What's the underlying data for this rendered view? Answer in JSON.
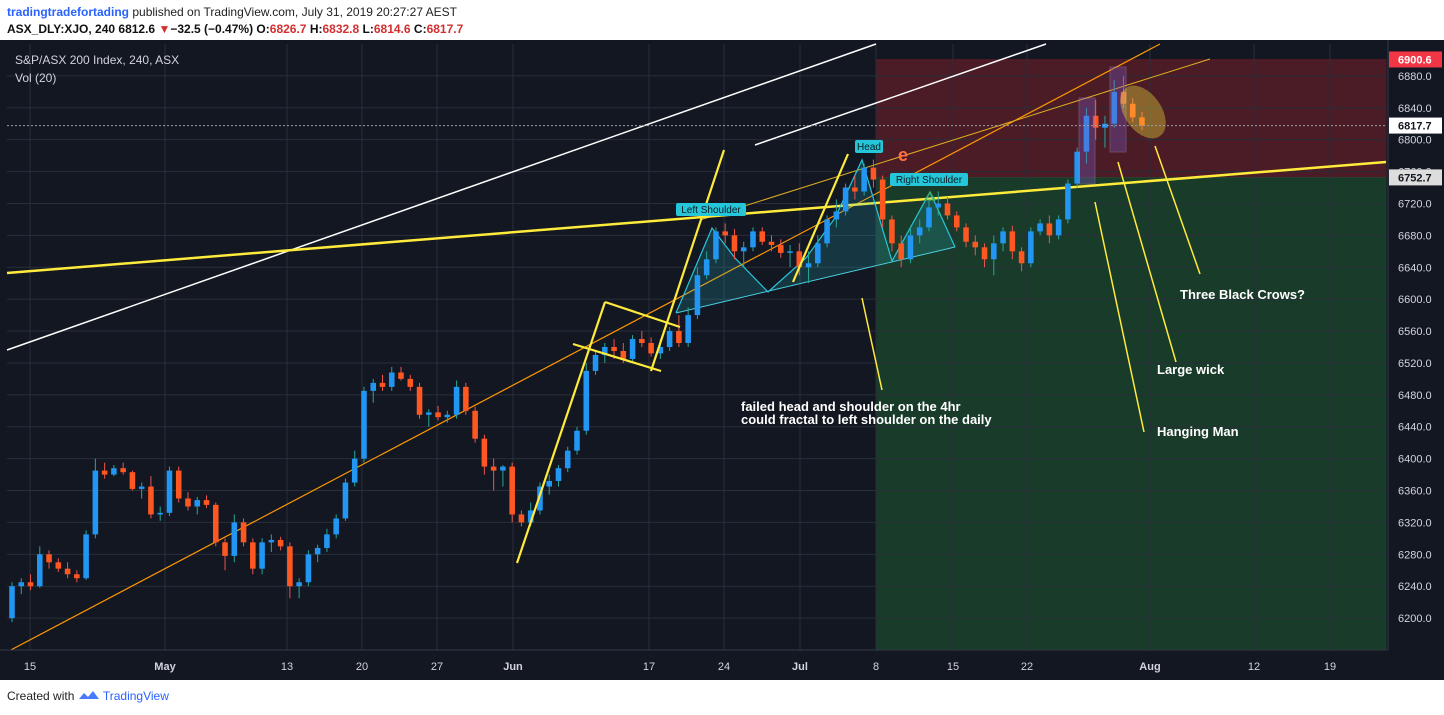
{
  "header": {
    "author": "tradingtradefortading",
    "published_text": "published on TradingView.com, July 31, 2019 20:27:27 AEST",
    "symbol": "ASX_DLY:XJO, 240",
    "price": "6812.6",
    "down_arrow": "▼",
    "change": "−32.5 (−0.47%)",
    "o_label": "O:",
    "o_value": "6826.7",
    "h_label": "H:",
    "h_value": "6832.8",
    "l_label": "L:",
    "l_value": "6814.6",
    "c_label": "C:",
    "c_value": "6817.7"
  },
  "footer": {
    "created_with": "Created with",
    "brand": "TradingView"
  },
  "chart_data": {
    "type": "candlestick",
    "title": "S&P/ASX 200 Index, 240, ASX",
    "indicator": "Vol (20)",
    "ylim": [
      6160,
      6920
    ],
    "y_ticks": [
      6200,
      6240,
      6280,
      6320,
      6360,
      6400,
      6440,
      6480,
      6520,
      6560,
      6600,
      6640,
      6680,
      6720,
      6760,
      6800,
      6840,
      6880
    ],
    "x_ticks": [
      "15",
      "May",
      "13",
      "20",
      "27",
      "Jun",
      "17",
      "24",
      "Jul",
      "8",
      "15",
      "22",
      "Aug",
      "12",
      "19"
    ],
    "price_labels": [
      {
        "value": 6900.6,
        "text": "6900.6",
        "color": "#f23645"
      },
      {
        "value": 6817.7,
        "text": "6817.7",
        "color": "#ffffff"
      },
      {
        "value": 6752.7,
        "text": "6752.7",
        "color": "#dddddd"
      }
    ],
    "current_price": 6817.7,
    "zones": [
      {
        "name": "resistance-zone",
        "from": 6752.7,
        "to": 6900.6,
        "color": "#7a1f2b"
      },
      {
        "name": "support-zone",
        "from": 6160,
        "to": 6752.7,
        "color": "#1f5a32"
      }
    ],
    "candle_colors": {
      "up": "#2196f3",
      "down": "#ff5722",
      "wick_up": "#26a69a",
      "wick_down": "#ef5350"
    },
    "candles": [
      [
        6200,
        6245,
        6195,
        6240
      ],
      [
        6240,
        6250,
        6230,
        6245
      ],
      [
        6245,
        6255,
        6235,
        6240
      ],
      [
        6240,
        6290,
        6238,
        6280
      ],
      [
        6280,
        6285,
        6262,
        6270
      ],
      [
        6270,
        6275,
        6258,
        6262
      ],
      [
        6262,
        6270,
        6250,
        6255
      ],
      [
        6255,
        6260,
        6245,
        6250
      ],
      [
        6250,
        6310,
        6248,
        6305
      ],
      [
        6305,
        6400,
        6300,
        6385
      ],
      [
        6385,
        6395,
        6375,
        6380
      ],
      [
        6380,
        6392,
        6378,
        6388
      ],
      [
        6388,
        6395,
        6380,
        6383
      ],
      [
        6383,
        6385,
        6360,
        6362
      ],
      [
        6362,
        6370,
        6350,
        6365
      ],
      [
        6365,
        6378,
        6325,
        6330
      ],
      [
        6330,
        6340,
        6322,
        6332
      ],
      [
        6332,
        6390,
        6328,
        6385
      ],
      [
        6385,
        6390,
        6345,
        6350
      ],
      [
        6350,
        6358,
        6335,
        6340
      ],
      [
        6340,
        6352,
        6330,
        6348
      ],
      [
        6348,
        6354,
        6338,
        6342
      ],
      [
        6342,
        6345,
        6290,
        6295
      ],
      [
        6295,
        6300,
        6260,
        6278
      ],
      [
        6278,
        6330,
        6270,
        6320
      ],
      [
        6320,
        6325,
        6290,
        6295
      ],
      [
        6295,
        6300,
        6255,
        6262
      ],
      [
        6262,
        6300,
        6255,
        6295
      ],
      [
        6295,
        6305,
        6283,
        6298
      ],
      [
        6298,
        6302,
        6285,
        6290
      ],
      [
        6290,
        6295,
        6225,
        6240
      ],
      [
        6240,
        6250,
        6225,
        6245
      ],
      [
        6245,
        6285,
        6240,
        6280
      ],
      [
        6280,
        6292,
        6270,
        6288
      ],
      [
        6288,
        6312,
        6283,
        6305
      ],
      [
        6305,
        6330,
        6300,
        6325
      ],
      [
        6325,
        6375,
        6322,
        6370
      ],
      [
        6370,
        6410,
        6365,
        6400
      ],
      [
        6400,
        6490,
        6395,
        6485
      ],
      [
        6485,
        6500,
        6470,
        6495
      ],
      [
        6495,
        6505,
        6485,
        6490
      ],
      [
        6490,
        6515,
        6485,
        6508
      ],
      [
        6508,
        6515,
        6498,
        6500
      ],
      [
        6500,
        6505,
        6485,
        6490
      ],
      [
        6490,
        6495,
        6450,
        6455
      ],
      [
        6455,
        6462,
        6440,
        6458
      ],
      [
        6458,
        6466,
        6448,
        6452
      ],
      [
        6452,
        6460,
        6445,
        6455
      ],
      [
        6455,
        6498,
        6450,
        6490
      ],
      [
        6490,
        6495,
        6455,
        6460
      ],
      [
        6460,
        6465,
        6420,
        6425
      ],
      [
        6425,
        6430,
        6380,
        6390
      ],
      [
        6390,
        6400,
        6360,
        6385
      ],
      [
        6385,
        6392,
        6365,
        6390
      ],
      [
        6390,
        6395,
        6320,
        6330
      ],
      [
        6330,
        6335,
        6315,
        6320
      ],
      [
        6320,
        6345,
        6315,
        6335
      ],
      [
        6335,
        6370,
        6330,
        6365
      ],
      [
        6365,
        6380,
        6355,
        6372
      ],
      [
        6372,
        6392,
        6365,
        6388
      ],
      [
        6388,
        6415,
        6383,
        6410
      ],
      [
        6410,
        6440,
        6405,
        6435
      ],
      [
        6435,
        6520,
        6430,
        6510
      ],
      [
        6510,
        6535,
        6505,
        6530
      ],
      [
        6530,
        6545,
        6520,
        6540
      ],
      [
        6540,
        6550,
        6525,
        6535
      ],
      [
        6535,
        6545,
        6520,
        6525
      ],
      [
        6525,
        6555,
        6520,
        6550
      ],
      [
        6550,
        6560,
        6540,
        6545
      ],
      [
        6545,
        6552,
        6528,
        6532
      ],
      [
        6532,
        6550,
        6525,
        6540
      ],
      [
        6540,
        6565,
        6535,
        6560
      ],
      [
        6560,
        6580,
        6540,
        6545
      ],
      [
        6545,
        6590,
        6540,
        6580
      ],
      [
        6580,
        6640,
        6575,
        6630
      ],
      [
        6630,
        6660,
        6625,
        6650
      ],
      [
        6650,
        6690,
        6645,
        6685
      ],
      [
        6685,
        6695,
        6670,
        6680
      ],
      [
        6680,
        6688,
        6650,
        6660
      ],
      [
        6660,
        6672,
        6640,
        6665
      ],
      [
        6665,
        6690,
        6660,
        6685
      ],
      [
        6685,
        6690,
        6668,
        6672
      ],
      [
        6672,
        6680,
        6660,
        6668
      ],
      [
        6668,
        6675,
        6652,
        6658
      ],
      [
        6658,
        6668,
        6640,
        6660
      ],
      [
        6660,
        6670,
        6630,
        6640
      ],
      [
        6640,
        6660,
        6620,
        6645
      ],
      [
        6645,
        6680,
        6640,
        6670
      ],
      [
        6670,
        6705,
        6665,
        6700
      ],
      [
        6700,
        6725,
        6690,
        6710
      ],
      [
        6710,
        6745,
        6705,
        6740
      ],
      [
        6740,
        6755,
        6725,
        6735
      ],
      [
        6735,
        6770,
        6730,
        6765
      ],
      [
        6765,
        6775,
        6740,
        6750
      ],
      [
        6750,
        6755,
        6690,
        6700
      ],
      [
        6700,
        6705,
        6660,
        6670
      ],
      [
        6670,
        6680,
        6640,
        6650
      ],
      [
        6650,
        6690,
        6645,
        6680
      ],
      [
        6680,
        6700,
        6670,
        6690
      ],
      [
        6690,
        6725,
        6685,
        6715
      ],
      [
        6715,
        6735,
        6705,
        6720
      ],
      [
        6720,
        6728,
        6700,
        6705
      ],
      [
        6705,
        6710,
        6685,
        6690
      ],
      [
        6690,
        6695,
        6665,
        6672
      ],
      [
        6672,
        6680,
        6655,
        6665
      ],
      [
        6665,
        6670,
        6640,
        6650
      ],
      [
        6650,
        6680,
        6630,
        6670
      ],
      [
        6670,
        6690,
        6660,
        6685
      ],
      [
        6685,
        6692,
        6650,
        6660
      ],
      [
        6660,
        6665,
        6635,
        6645
      ],
      [
        6645,
        6690,
        6640,
        6685
      ],
      [
        6685,
        6700,
        6680,
        6695
      ],
      [
        6695,
        6705,
        6670,
        6680
      ],
      [
        6680,
        6705,
        6675,
        6700
      ],
      [
        6700,
        6750,
        6695,
        6745
      ],
      [
        6745,
        6790,
        6740,
        6785
      ],
      [
        6785,
        6840,
        6770,
        6830
      ],
      [
        6830,
        6850,
        6800,
        6815
      ],
      [
        6815,
        6830,
        6790,
        6820
      ],
      [
        6820,
        6875,
        6815,
        6860
      ],
      [
        6860,
        6880,
        6840,
        6845
      ],
      [
        6845,
        6852,
        6822,
        6828
      ],
      [
        6828,
        6835,
        6812,
        6818
      ]
    ],
    "annotations": [
      {
        "name": "left-shoulder-label",
        "text": "Left Shoulder"
      },
      {
        "name": "head-label",
        "text": "Head"
      },
      {
        "name": "right-shoulder-label",
        "text": "Right Shoulder"
      },
      {
        "name": "wave-e-label",
        "text": "e"
      },
      {
        "name": "failed-hs-note-1",
        "text": "failed head and shoulder on the 4hr"
      },
      {
        "name": "failed-hs-note-2",
        "text": "could fractal to left shoulder on the daily"
      },
      {
        "name": "three-black-crows-label",
        "text": "Three Black Crows?"
      },
      {
        "name": "large-wick-label",
        "text": "Large wick"
      },
      {
        "name": "hanging-man-label",
        "text": "Hanging Man"
      }
    ]
  }
}
